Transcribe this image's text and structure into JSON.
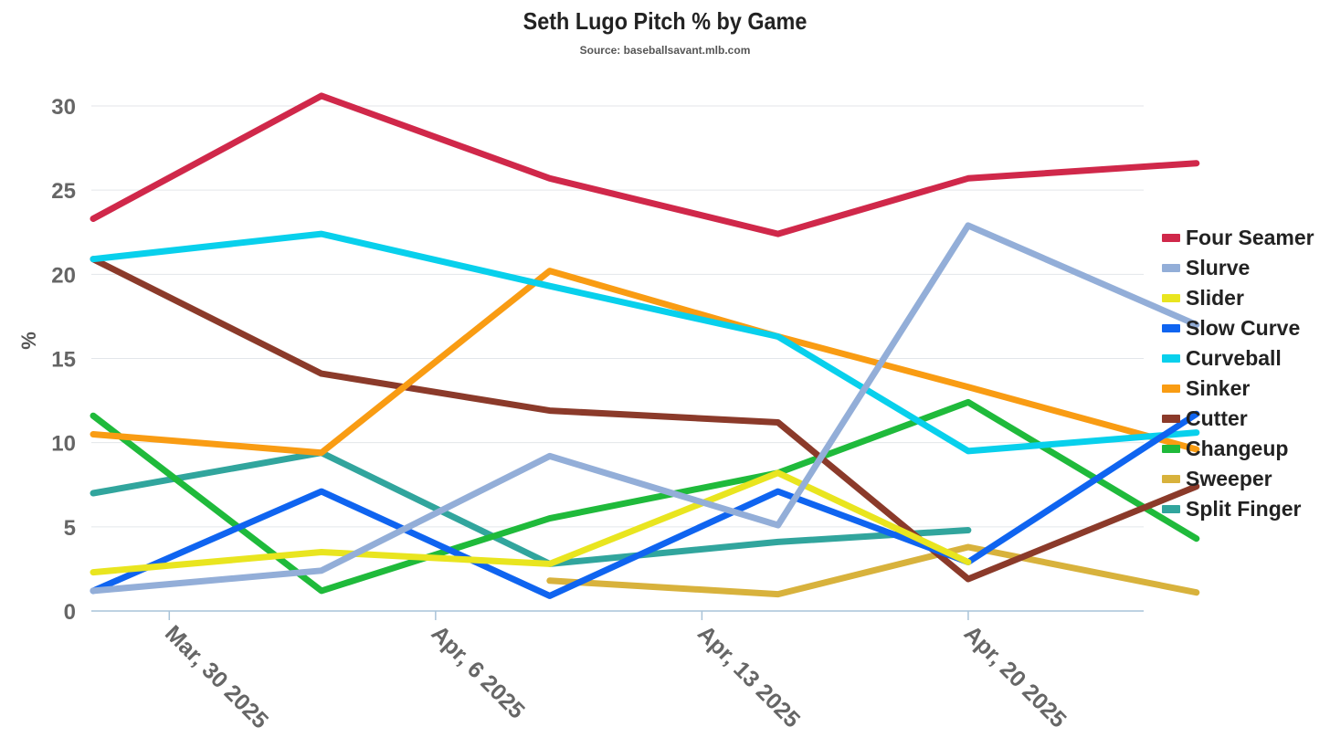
{
  "chart_data": {
    "type": "line",
    "title": "Seth Lugo Pitch % by Game",
    "subtitle": "Source: baseballsavant.mlb.com",
    "xlabel": "",
    "ylabel": "%",
    "ylim": [
      0,
      30
    ],
    "yticks": [
      "0",
      "5",
      "10",
      "15",
      "20",
      "25",
      "30"
    ],
    "ytick_values": [
      0,
      5,
      10,
      15,
      20,
      25,
      30
    ],
    "xticks": [
      "Mar, 30 2025",
      "Apr, 6 2025",
      "Apr, 13 2025",
      "Apr, 20 2025"
    ],
    "xtick_dates": [
      "2025-03-30",
      "2025-04-06",
      "2025-04-13",
      "2025-04-20"
    ],
    "xlim": [
      "2025-03-28",
      "2025-04-25"
    ],
    "grid": true,
    "legend_position": "right",
    "x": [
      "2025-03-28",
      "2025-04-03",
      "2025-04-09",
      "2025-04-15",
      "2025-04-20",
      "2025-04-26"
    ],
    "series": [
      {
        "name": "Four Seamer",
        "color": "#d0284a",
        "values": [
          23.3,
          30.6,
          25.7,
          22.4,
          25.7,
          26.6
        ]
      },
      {
        "name": "Slurve",
        "color": "#93aed8",
        "values": [
          1.2,
          2.4,
          9.2,
          5.1,
          22.9,
          17.0
        ]
      },
      {
        "name": "Slider",
        "color": "#e9e51f",
        "values": [
          2.3,
          3.5,
          2.8,
          8.2,
          2.9,
          null
        ]
      },
      {
        "name": "Slow Curve",
        "color": "#0f64f0",
        "values": [
          1.2,
          7.1,
          0.9,
          7.1,
          2.9,
          11.7
        ]
      },
      {
        "name": "Curveball",
        "color": "#08d0ec",
        "values": [
          20.9,
          22.4,
          19.3,
          16.3,
          9.5,
          10.6
        ]
      },
      {
        "name": "Sinker",
        "color": "#f99c13",
        "values": [
          10.5,
          9.4,
          20.2,
          16.3,
          13.3,
          9.6
        ]
      },
      {
        "name": "Cutter",
        "color": "#8b3a2a",
        "values": [
          20.9,
          14.1,
          11.9,
          11.2,
          1.9,
          7.4
        ]
      },
      {
        "name": "Changeup",
        "color": "#1fba3b",
        "values": [
          11.6,
          1.2,
          5.5,
          8.2,
          12.4,
          4.3
        ]
      },
      {
        "name": "Sweeper",
        "color": "#d8b23c",
        "values": [
          null,
          null,
          1.8,
          1.0,
          3.8,
          1.1
        ]
      },
      {
        "name": "Split Finger",
        "color": "#31a59d",
        "values": [
          7.0,
          9.4,
          2.8,
          4.1,
          4.8,
          null
        ]
      }
    ]
  }
}
